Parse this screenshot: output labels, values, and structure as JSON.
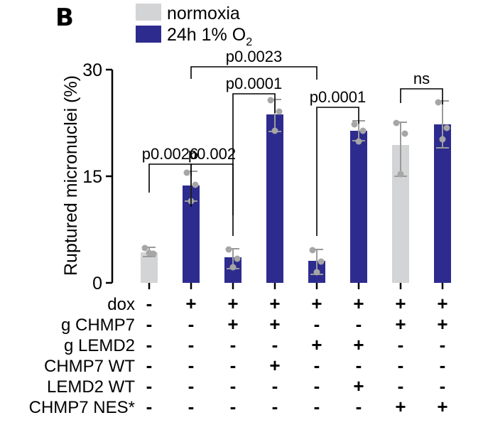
{
  "panel_label": "B",
  "chart_data": {
    "type": "bar",
    "title": "",
    "xlabel": "",
    "ylabel": "Ruptured micronuclei (%)",
    "ylim": [
      0,
      30
    ],
    "yticks": [
      0,
      15,
      30
    ],
    "legend": {
      "placement": "top-left",
      "entries": [
        {
          "name": "normoxia",
          "color": "#d3d4d6"
        },
        {
          "name": "24h 1% O",
          "subscript": "2",
          "color": "#2d2c8e"
        }
      ]
    },
    "bars": [
      {
        "condition": "normoxia",
        "mean": 4.3,
        "sd": [
          3.7,
          5.0
        ],
        "points": [
          4.9,
          4.1,
          4.2
        ]
      },
      {
        "condition": "hypoxia",
        "mean": 13.7,
        "sd": [
          11.5,
          15.7
        ],
        "points": [
          15.5,
          13.8,
          11.5
        ]
      },
      {
        "condition": "hypoxia",
        "mean": 3.6,
        "sd": [
          2.0,
          4.8
        ],
        "points": [
          4.7,
          3.4,
          2.2
        ]
      },
      {
        "condition": "hypoxia",
        "mean": 23.7,
        "sd": [
          21.3,
          25.8
        ],
        "points": [
          25.7,
          24.1,
          21.4
        ]
      },
      {
        "condition": "hypoxia",
        "mean": 3.1,
        "sd": [
          1.2,
          4.7
        ],
        "points": [
          4.6,
          3.0,
          1.5
        ]
      },
      {
        "condition": "hypoxia",
        "mean": 21.4,
        "sd": [
          20.0,
          22.8
        ],
        "points": [
          22.3,
          21.4,
          19.9
        ]
      },
      {
        "condition": "normoxia",
        "mean": 19.4,
        "sd": [
          15.0,
          22.6
        ],
        "points": [
          22.5,
          21.0,
          15.3
        ]
      },
      {
        "condition": "hypoxia",
        "mean": 22.3,
        "sd": [
          19.0,
          25.6
        ],
        "points": [
          25.4,
          21.8,
          20.2
        ]
      }
    ],
    "annotations": [
      {
        "text": "p0.0026",
        "from": 0,
        "to": 1
      },
      {
        "text": "p0.002",
        "from": 1,
        "to": 2
      },
      {
        "text": "p0.0001",
        "from": 2,
        "to": 3
      },
      {
        "text": "p0.0023",
        "from": 1,
        "to": 4
      },
      {
        "text": "p0.0001",
        "from": 4,
        "to": 5
      },
      {
        "text": "ns",
        "from": 6,
        "to": 7
      }
    ],
    "condition_table": [
      {
        "label": "dox",
        "values": [
          "-",
          "+",
          "+",
          "+",
          "+",
          "+",
          "+",
          "+"
        ]
      },
      {
        "label": "g CHMP7",
        "values": [
          "-",
          "-",
          "+",
          "+",
          "-",
          "-",
          "+",
          "+"
        ]
      },
      {
        "label": "g LEMD2",
        "values": [
          "-",
          "-",
          "-",
          "-",
          "+",
          "+",
          "-",
          "-"
        ]
      },
      {
        "label": "CHMP7 WT",
        "values": [
          "-",
          "-",
          "-",
          "+",
          "-",
          "-",
          "-",
          "-"
        ]
      },
      {
        "label": "LEMD2 WT",
        "values": [
          "-",
          "-",
          "-",
          "-",
          "-",
          "+",
          "-",
          "-"
        ]
      },
      {
        "label": "CHMP7 NES*",
        "values": [
          "-",
          "-",
          "-",
          "-",
          "-",
          "-",
          "+",
          "+"
        ]
      }
    ]
  }
}
